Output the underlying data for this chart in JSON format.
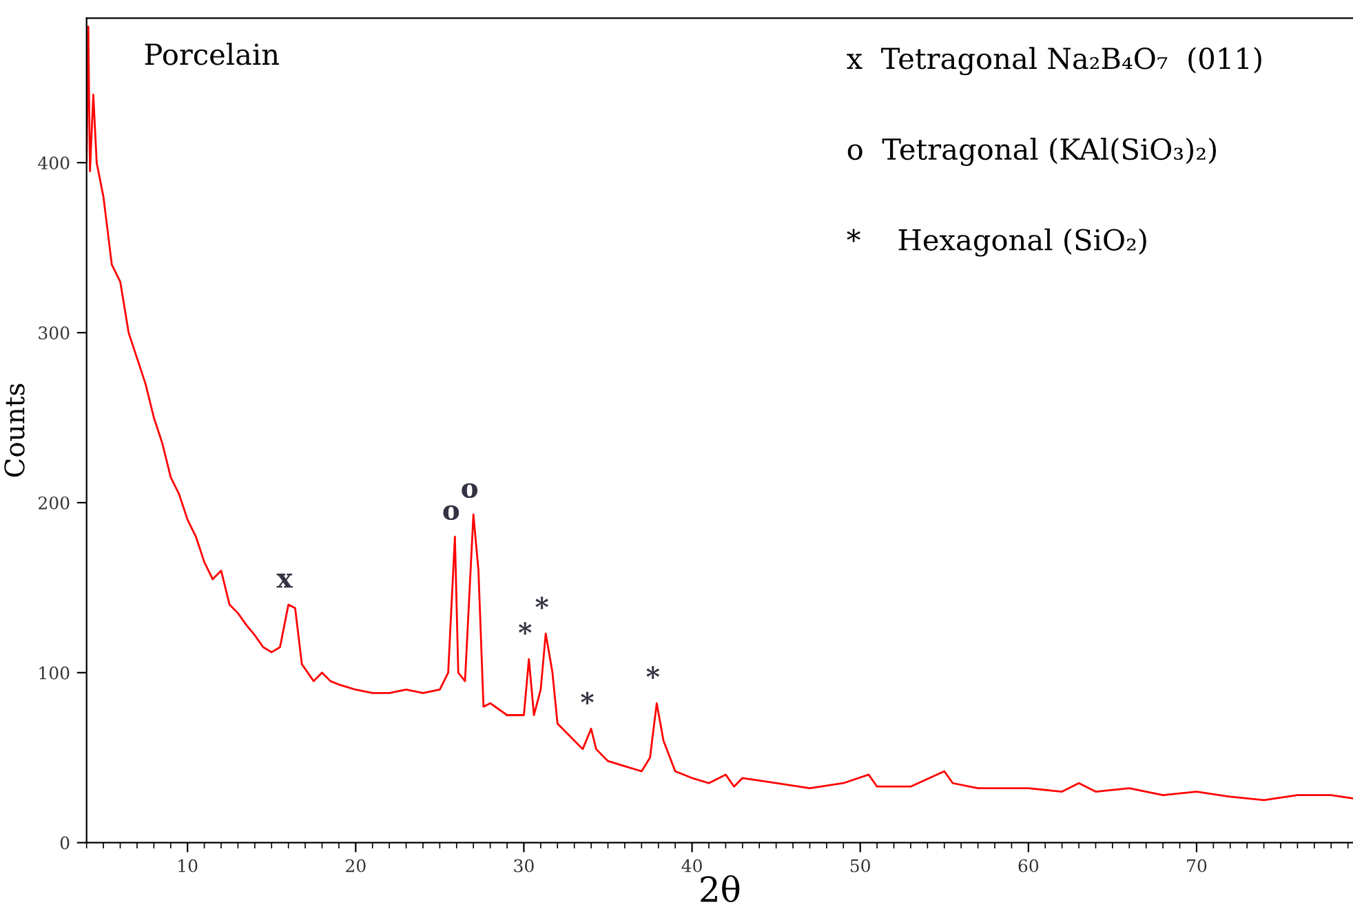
{
  "chart_data": {
    "type": "line",
    "title": "Porcelain",
    "xlabel": "2θ",
    "ylabel": "Counts",
    "xlim": [
      4,
      79.3
    ],
    "ylim": [
      0,
      485
    ],
    "xticks": [
      10,
      20,
      30,
      40,
      50,
      60,
      70
    ],
    "yticks": [
      0,
      100,
      200,
      300,
      400
    ],
    "grid": false,
    "legend": false,
    "marker": "none",
    "line_style": "solid",
    "series": [
      {
        "color": "#ff0000",
        "x": [
          4.0,
          4.1,
          4.2,
          4.4,
          4.6,
          5,
          5.5,
          6,
          6.5,
          7,
          7.5,
          8,
          8.5,
          9,
          9.5,
          10,
          10.5,
          11,
          11.5,
          12,
          12.5,
          13,
          13.5,
          14,
          14.5,
          15,
          15.5,
          16,
          16.4,
          16.8,
          17.5,
          18,
          18.5,
          19,
          20,
          21,
          22,
          23,
          24,
          25,
          25.5,
          25.9,
          26.1,
          26.5,
          27.0,
          27.3,
          27.6,
          28,
          29,
          30,
          30.3,
          30.6,
          31.0,
          31.3,
          31.7,
          32,
          33,
          33.5,
          34.0,
          34.3,
          35,
          36,
          37,
          37.5,
          37.9,
          38.3,
          39,
          40,
          41,
          42,
          42.5,
          43,
          45,
          47,
          49,
          50.5,
          51,
          53,
          55,
          55.5,
          57,
          60,
          62,
          63,
          64,
          66,
          68,
          70,
          72,
          74,
          76,
          78,
          79.3
        ],
        "values": [
          400,
          480,
          395,
          440,
          400,
          380,
          340,
          330,
          300,
          285,
          270,
          250,
          235,
          215,
          205,
          190,
          180,
          165,
          155,
          160,
          140,
          135,
          128,
          122,
          115,
          112,
          115,
          140,
          138,
          105,
          95,
          100,
          95,
          93,
          90,
          88,
          88,
          90,
          88,
          90,
          100,
          180,
          100,
          95,
          193,
          160,
          80,
          82,
          75,
          75,
          108,
          75,
          90,
          123,
          100,
          70,
          60,
          55,
          67,
          55,
          48,
          45,
          42,
          50,
          82,
          60,
          42,
          38,
          35,
          40,
          33,
          38,
          35,
          32,
          35,
          40,
          33,
          33,
          42,
          35,
          32,
          32,
          30,
          35,
          30,
          32,
          28,
          30,
          27,
          25,
          28,
          28,
          26
        ]
      }
    ],
    "annotations": [
      {
        "text": "x",
        "x": 16,
        "y": 140
      },
      {
        "text": "o",
        "x": 25.9,
        "y": 180
      },
      {
        "text": "o",
        "x": 27.0,
        "y": 193
      },
      {
        "text": "*",
        "x": 30.3,
        "y": 108
      },
      {
        "text": "*",
        "x": 31.3,
        "y": 123
      },
      {
        "text": "*",
        "x": 34.0,
        "y": 67
      },
      {
        "text": "*",
        "x": 37.9,
        "y": 82
      },
      "x  Tetragonal Na₂B₄O₇  (011)",
      "o  Tetragonal (KAl(SiO₃)₂)",
      "*    Hexagonal (SiO₂)"
    ]
  }
}
